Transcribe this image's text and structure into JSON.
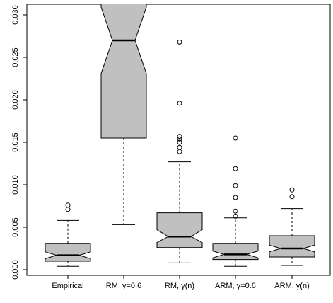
{
  "chart_data": {
    "type": "boxplot",
    "title": "",
    "xlabel": "",
    "ylabel": "",
    "ylim": [
      0.0,
      0.031
    ],
    "y_ticks": [
      "0.000",
      "0.005",
      "0.010",
      "0.015",
      "0.020",
      "0.025",
      "0.030"
    ],
    "box_fill": "#c0c0c0",
    "notched": true,
    "grid": false,
    "categories": [
      "Empirical",
      "RM, γ=0.6",
      "RM, γ(n)",
      "ARM, γ=0.6",
      "ARM, γ(n)"
    ],
    "boxes": [
      {
        "name": "Empirical",
        "whisker_low": 0.0004,
        "q1": 0.001,
        "notch_low": 0.0013,
        "median": 0.0017,
        "notch_high": 0.0021,
        "q3": 0.0031,
        "whisker_high": 0.0058,
        "outliers": [
          0.0071,
          0.0076
        ]
      },
      {
        "name": "RM, γ=0.6",
        "whisker_low": 0.0053,
        "q1": 0.0155,
        "notch_low": 0.0231,
        "median": 0.027,
        "notch_high": 0.0309,
        "q3": 0.0335,
        "whisker_high": null,
        "outliers": []
      },
      {
        "name": "RM, γ(n)",
        "whisker_low": 0.0008,
        "q1": 0.0026,
        "notch_low": 0.0032,
        "median": 0.0039,
        "notch_high": 0.0047,
        "q3": 0.0067,
        "whisker_high": 0.0127,
        "outliers": [
          0.0139,
          0.0144,
          0.015,
          0.0154,
          0.0157,
          0.0196,
          0.0268
        ]
      },
      {
        "name": "ARM, γ=0.6",
        "whisker_low": 0.0004,
        "q1": 0.0012,
        "notch_low": 0.0014,
        "median": 0.0018,
        "notch_high": 0.0022,
        "q3": 0.0031,
        "whisker_high": 0.0061,
        "outliers": [
          0.0063,
          0.0069,
          0.0085,
          0.0099,
          0.0119,
          0.0155
        ]
      },
      {
        "name": "ARM, γ(n)",
        "whisker_low": 0.0005,
        "q1": 0.0015,
        "notch_low": 0.0021,
        "median": 0.0025,
        "notch_high": 0.0029,
        "q3": 0.004,
        "whisker_high": 0.0072,
        "outliers": [
          0.0086,
          0.0094
        ]
      }
    ]
  }
}
